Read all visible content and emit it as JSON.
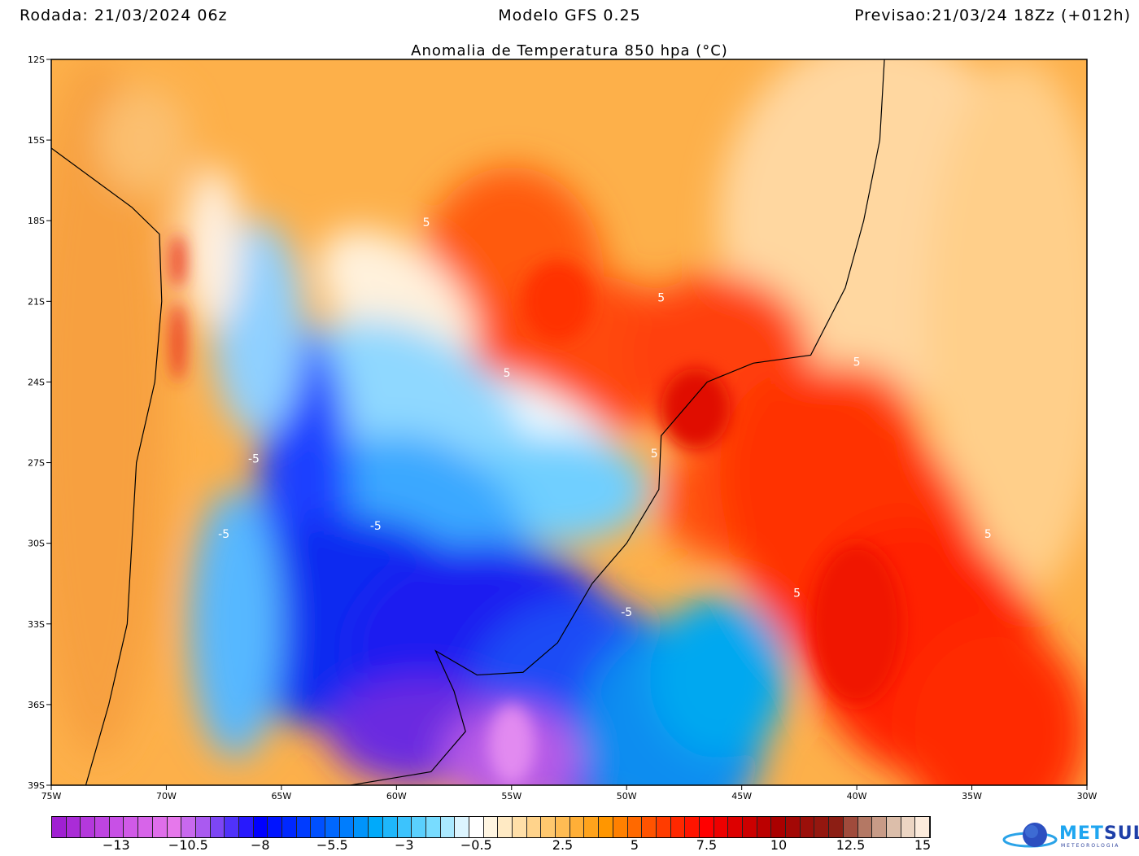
{
  "header": {
    "run": "Rodada: 21/03/2024 06z",
    "model": "Modelo GFS 0.25",
    "forecast": "Previsao:21/03/24 18Zz (+012h)"
  },
  "title": "Anomalia de Temperatura 850 hpa (°C)",
  "axes": {
    "lat_ticks": [
      "12S",
      "15S",
      "18S",
      "21S",
      "24S",
      "27S",
      "30S",
      "33S",
      "36S",
      "39S"
    ],
    "lat_values": [
      -12,
      -15,
      -18,
      -21,
      -24,
      -27,
      -30,
      -33,
      -36,
      -39
    ],
    "lon_ticks": [
      "75W",
      "70W",
      "65W",
      "60W",
      "55W",
      "50W",
      "45W",
      "40W",
      "35W",
      "30W"
    ],
    "lon_values": [
      -75,
      -70,
      -65,
      -60,
      -55,
      -50,
      -45,
      -40,
      -35,
      -30
    ]
  },
  "colorbar": {
    "range": [
      -15,
      15
    ],
    "step": 0.5,
    "labels": [
      "−13",
      "−10.5",
      "−8",
      "−5.5",
      "−3",
      "−0.5",
      "2.5",
      "5",
      "7.5",
      "10",
      "12.5",
      "15"
    ],
    "label_values": [
      -13,
      -10.5,
      -8,
      -5.5,
      -3,
      -0.5,
      2.5,
      5,
      7.5,
      10,
      12.5,
      15
    ]
  },
  "contour_labels": [
    {
      "text": "5",
      "lon": -58.7,
      "lat": -18.2
    },
    {
      "text": "5",
      "lon": -48.5,
      "lat": -21
    },
    {
      "text": "5",
      "lon": -55.2,
      "lat": -23.8
    },
    {
      "text": "5",
      "lon": -40,
      "lat": -23.4
    },
    {
      "text": "5",
      "lon": -48.8,
      "lat": -26.8
    },
    {
      "text": "5",
      "lon": -34.3,
      "lat": -29.8
    },
    {
      "text": "5",
      "lon": -42.6,
      "lat": -32
    },
    {
      "text": "-5",
      "lon": -67.5,
      "lat": -29.8
    },
    {
      "text": "-5",
      "lon": -60.9,
      "lat": -29.5
    },
    {
      "text": "-5",
      "lon": -50,
      "lat": -32.7
    },
    {
      "text": "-5",
      "lon": -66.2,
      "lat": -27
    }
  ],
  "logo": {
    "name_a": "MET",
    "name_b": "SUL",
    "sub": "METEOROLOGIA"
  }
}
